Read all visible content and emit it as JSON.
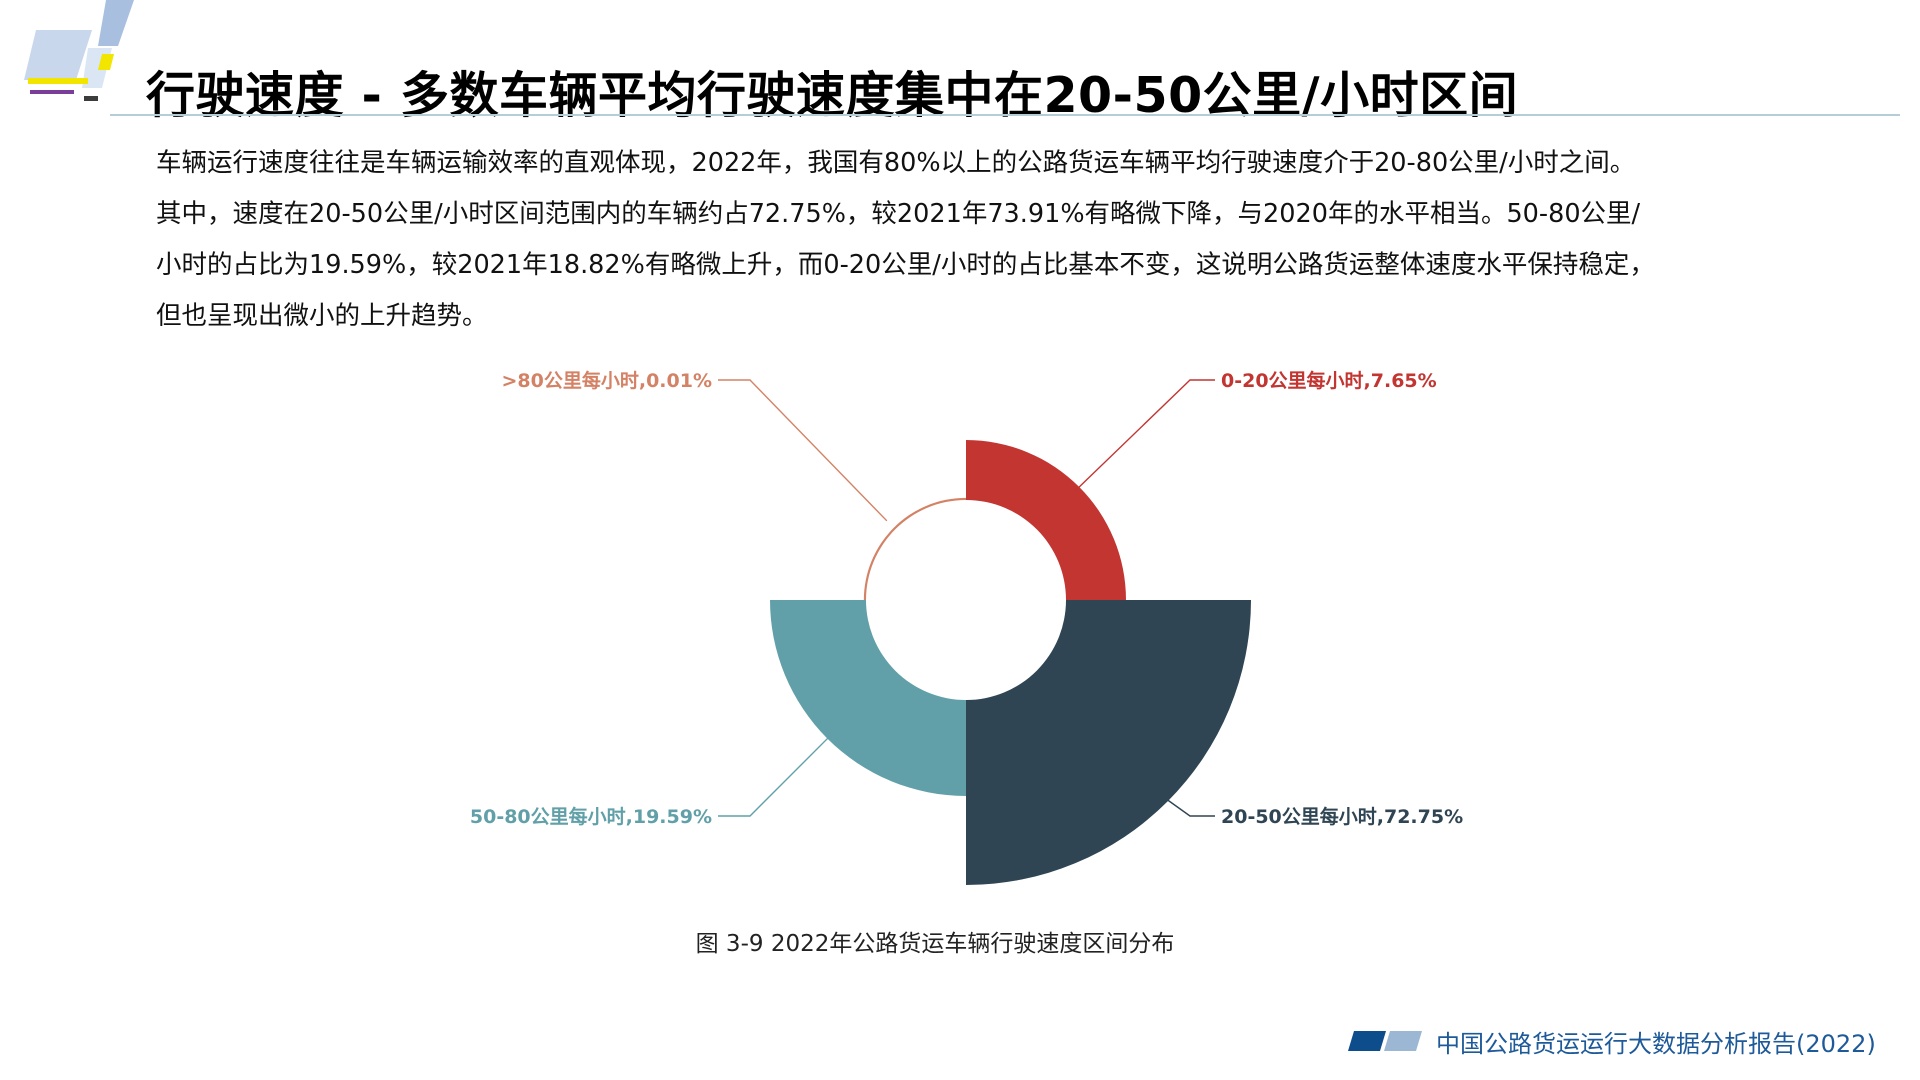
{
  "title": "行驶速度 - 多数车辆平均行驶速度集中在20-50公里/小时区间",
  "paragraph": [
    "车辆运行速度往往是车辆运输效率的直观体现，2022年，我国有80%以上的公路货运车辆平均行驶速度介于20-80公里/小时之间。",
    "其中，速度在20-50公里/小时区间范围内的车辆约占72.75%，较2021年73.91%有略微下降，与2020年的水平相当。50-80公里/",
    "小时的占比为19.59%，较2021年18.82%有略微上升，而0-20公里/小时的占比基本不变，这说明公路货运整体速度水平保持稳定，",
    "但也呈现出微小的上升趋势。"
  ],
  "chart_data": {
    "type": "pie",
    "variant": "nightingale-rose",
    "series": [
      {
        "label": "0-20公里每小时,7.65%",
        "name": "0-20公里每小时",
        "value": 7.65,
        "color": "#c23531"
      },
      {
        "label": "20-50公里每小时,72.75%",
        "name": "20-50公里每小时",
        "value": 72.75,
        "color": "#2f4554"
      },
      {
        "label": "50-80公里每小时,19.59%",
        "name": "50-80公里每小时",
        "value": 19.59,
        "color": "#61a0a8"
      },
      {
        "label": ">80公里每小时,0.01%",
        "name": ">80公里每小时",
        "value": 0.01,
        "color": "#d48265"
      }
    ]
  },
  "caption": "图 3-9 2022年公路货运车辆行驶速度区间分布",
  "footer": "中国公路货运运行大数据分析报告(2022)",
  "colors": {
    "footer_text": "#1e5a99",
    "footer_mark_dark": "#0d4d8c",
    "footer_mark_light": "#9bb7d4",
    "title_rule": "#b5cdd7"
  }
}
